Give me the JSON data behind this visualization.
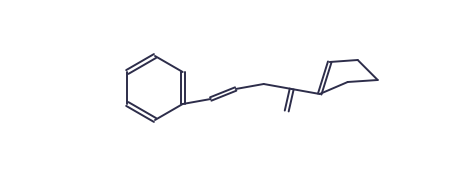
{
  "bg_color": "#ffffff",
  "line_color": "#2d2d4a",
  "lw": 1.4,
  "figsize": [
    4.71,
    1.73
  ],
  "dpi": 100
}
